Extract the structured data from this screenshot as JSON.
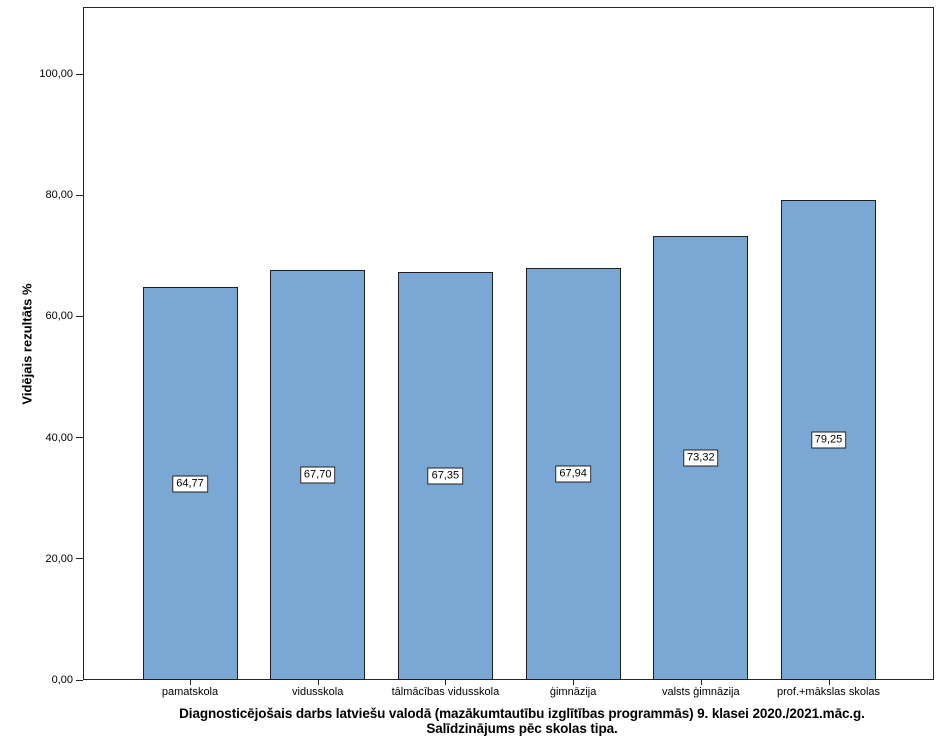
{
  "chart_data": {
    "type": "bar",
    "categories": [
      "pamatskola",
      "vidusskola",
      "tālmācības vidusskola",
      "ģimnāzija",
      "valsts ģimnāzija",
      "prof.+mākslas skolas"
    ],
    "values": [
      64.77,
      67.7,
      67.35,
      67.94,
      73.32,
      79.25
    ],
    "value_labels": [
      "64,77",
      "67,70",
      "67,35",
      "67,94",
      "73,32",
      "79,25"
    ],
    "title": "Diagnosticējošais darbs latviešu valodā (mazākumtautību izglītības programmās) 9. klasei 2020./2021.māc.g.",
    "subtitle": "Salīdzinājums pēc skolas tipa.",
    "xlabel": "",
    "ylabel": "Vidējais rezultāts %",
    "ylim": [
      0,
      111
    ],
    "yticks": [
      0,
      20,
      40,
      60,
      80,
      100
    ],
    "ytick_labels": [
      "0,00",
      "20,00",
      "40,00",
      "60,00",
      "80,00",
      "100,00"
    ],
    "grid": false,
    "legend": null,
    "bar_color": "#7BA7D5",
    "bar_border_color": "#1f1f1f",
    "axis_color": "#262626"
  }
}
